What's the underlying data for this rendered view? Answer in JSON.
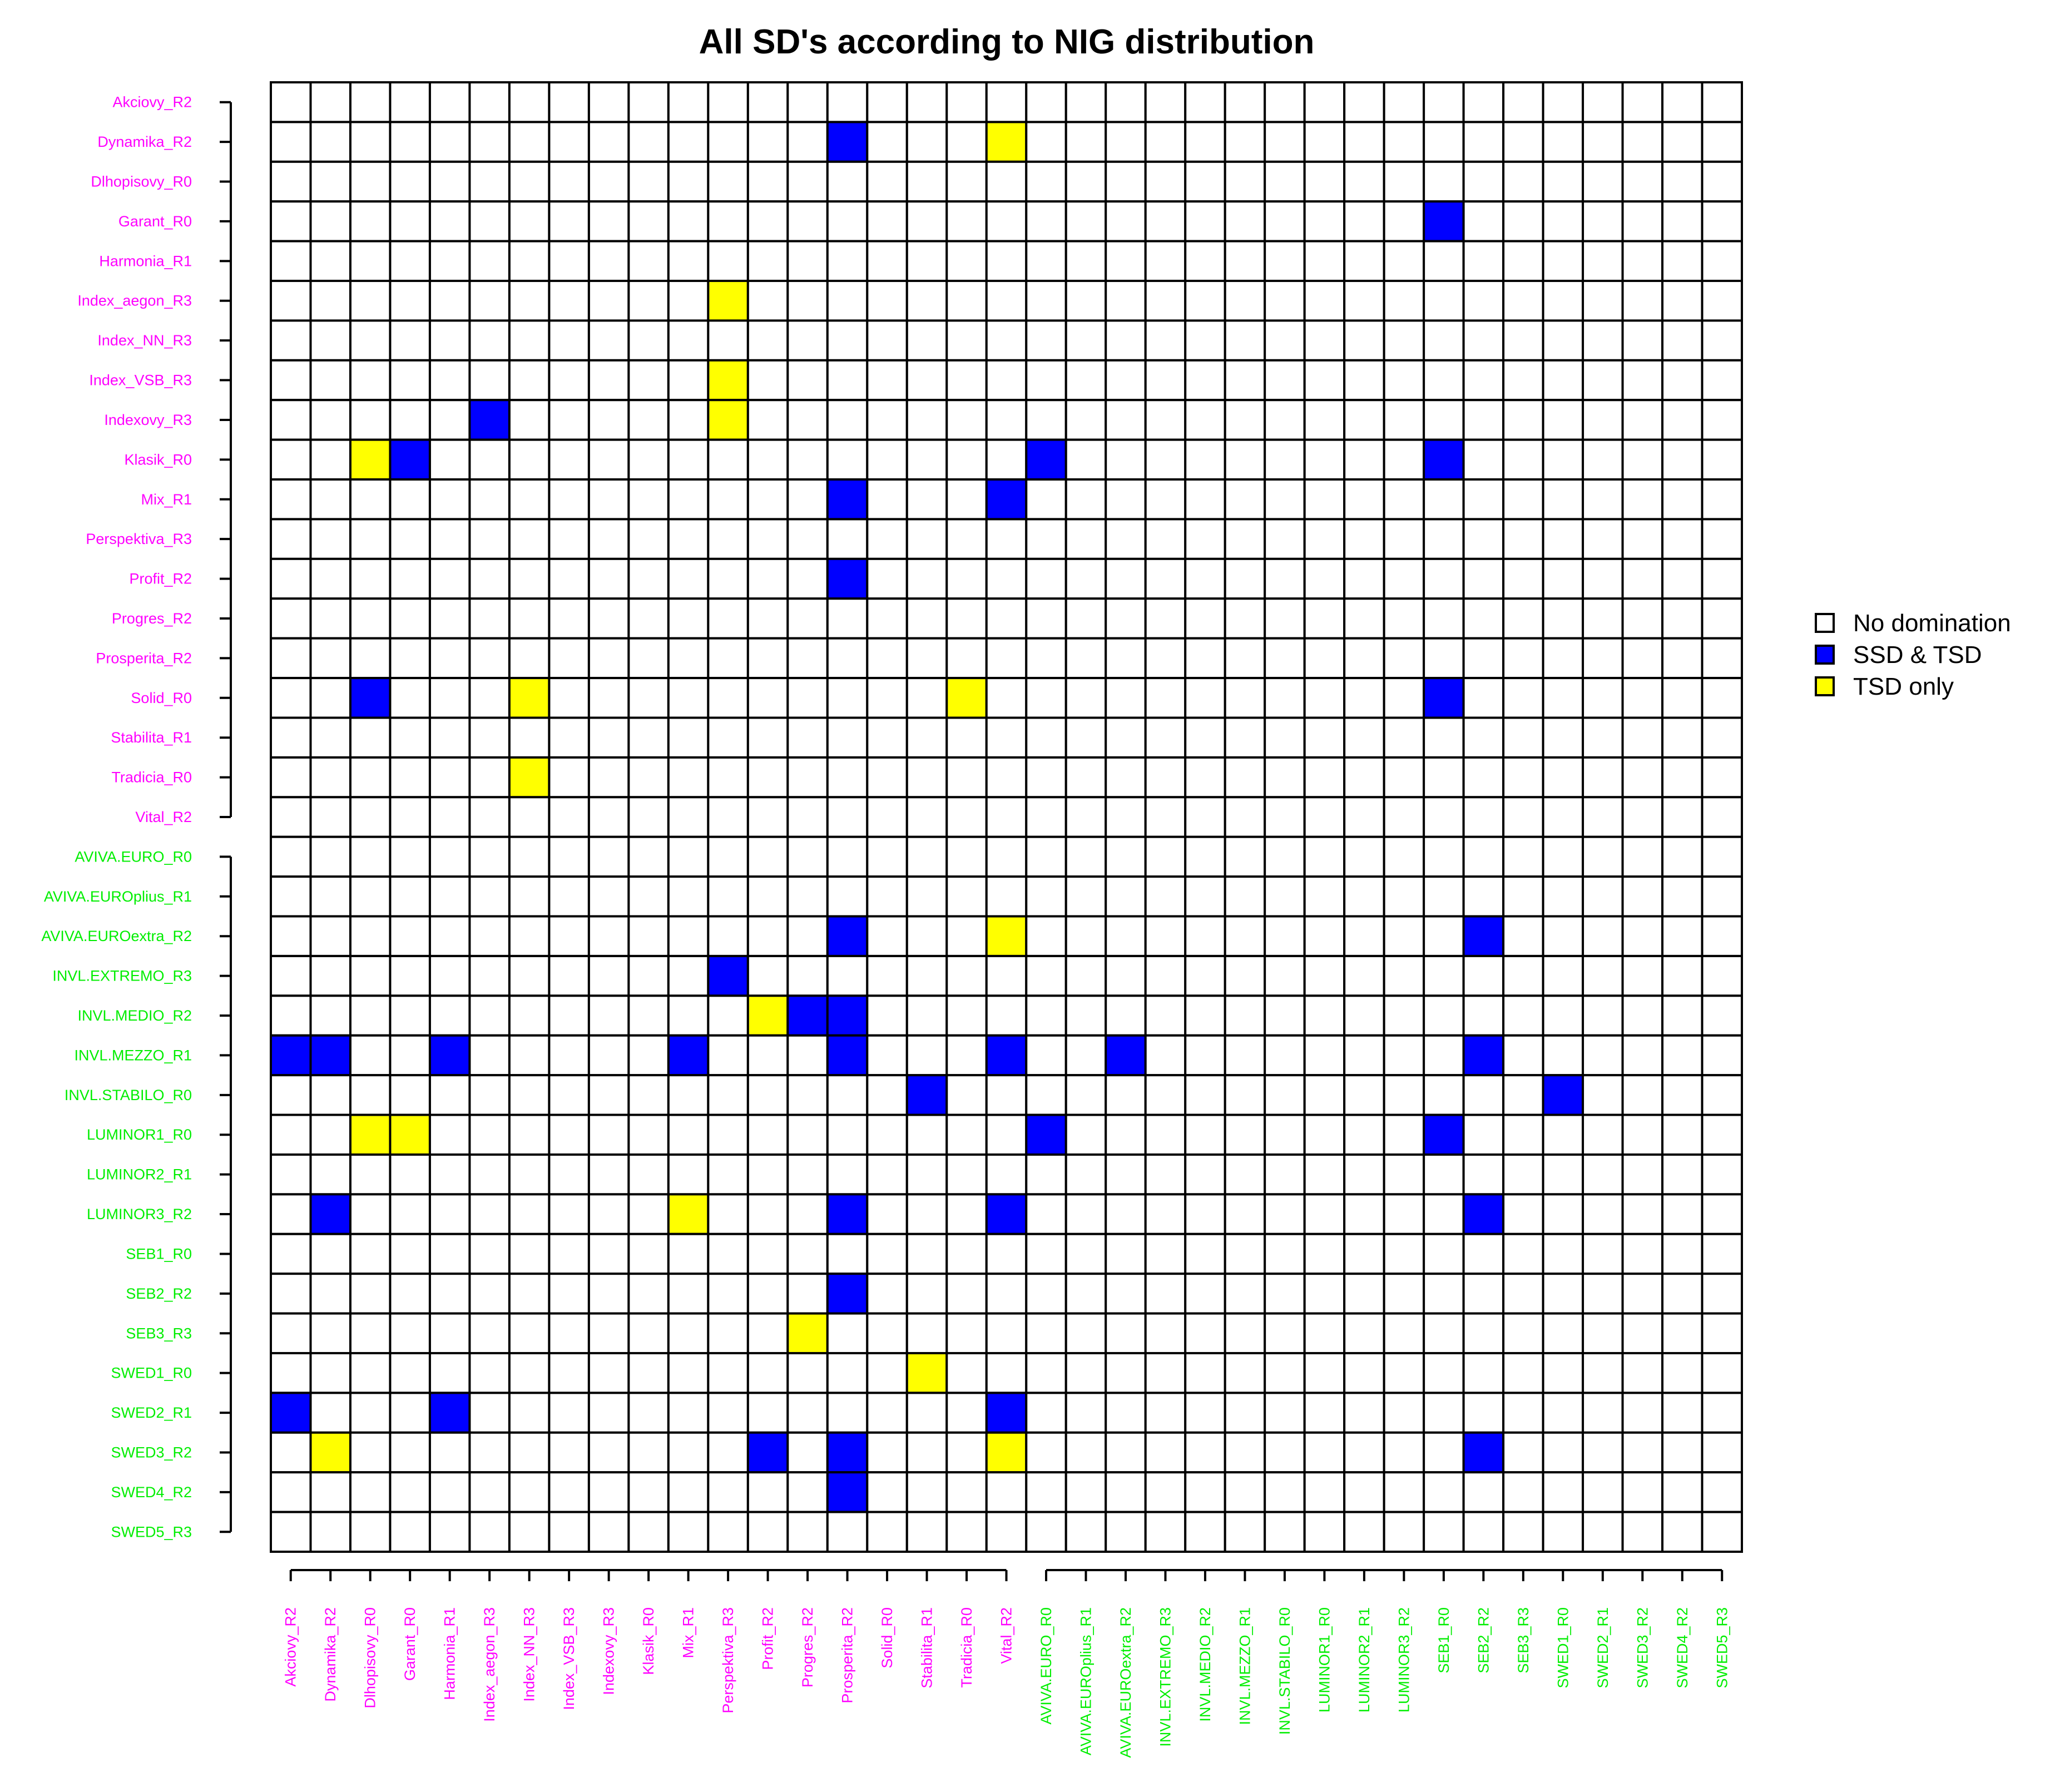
{
  "chart_data": {
    "type": "heatmap",
    "title": "All SD's according to NIG distribution",
    "xlabel": "",
    "ylabel": "",
    "group_colors": {
      "group1": "#ff00ff",
      "group2": "#00ee00"
    },
    "row_labels": [
      "Akciovy_R2",
      "Dynamika_R2",
      "Dlhopisovy_R0",
      "Garant_R0",
      "Harmonia_R1",
      "Index_aegon_R3",
      "Index_NN_R3",
      "Index_VSB_R3",
      "Indexovy_R3",
      "Klasik_R0",
      "Mix_R1",
      "Perspektiva_R3",
      "Profit_R2",
      "Progres_R2",
      "Prosperita_R2",
      "Solid_R0",
      "Stabilita_R1",
      "Tradicia_R0",
      "Vital_R2",
      "AVIVA.EURO_R0",
      "AVIVA.EUROplius_R1",
      "AVIVA.EUROextra_R2",
      "INVL.EXTREMO_R3",
      "INVL.MEDIO_R2",
      "INVL.MEZZO_R1",
      "INVL.STABILO_R0",
      "LUMINOR1_R0",
      "LUMINOR2_R1",
      "LUMINOR3_R2",
      "SEB1_R0",
      "SEB2_R2",
      "SEB3_R3",
      "SWED1_R0",
      "SWED2_R1",
      "SWED3_R2",
      "SWED4_R2",
      "SWED5_R3"
    ],
    "col_labels": [
      "Akciovy_R2",
      "Dynamika_R2",
      "Dlhopisovy_R0",
      "Garant_R0",
      "Harmonia_R1",
      "Index_aegon_R3",
      "Index_NN_R3",
      "Index_VSB_R3",
      "Indexovy_R3",
      "Klasik_R0",
      "Mix_R1",
      "Perspektiva_R3",
      "Profit_R2",
      "Progres_R2",
      "Prosperita_R2",
      "Solid_R0",
      "Stabilita_R1",
      "Tradicia_R0",
      "Vital_R2",
      "AVIVA.EURO_R0",
      "AVIVA.EUROplius_R1",
      "AVIVA.EUROextra_R2",
      "INVL.EXTREMO_R3",
      "INVL.MEDIO_R2",
      "INVL.MEZZO_R1",
      "INVL.STABILO_R0",
      "LUMINOR1_R0",
      "LUMINOR2_R1",
      "LUMINOR3_R2",
      "SEB1_R0",
      "SEB2_R2",
      "SEB3_R3",
      "SWED1_R0",
      "SWED2_R1",
      "SWED3_R2",
      "SWED4_R2",
      "SWED5_R3"
    ],
    "group1_count": 19,
    "categories": [
      {
        "name": "No domination",
        "color": "#ffffff"
      },
      {
        "name": "SSD & TSD",
        "color": "#0000ff"
      },
      {
        "name": "TSD only",
        "color": "#ffff00"
      }
    ],
    "cells": [
      {
        "row": "Dynamika_R2",
        "col": "Prosperita_R2",
        "value": "SSD & TSD"
      },
      {
        "row": "Dynamika_R2",
        "col": "Vital_R2",
        "value": "TSD only"
      },
      {
        "row": "Garant_R0",
        "col": "SEB1_R0",
        "value": "SSD & TSD"
      },
      {
        "row": "Index_aegon_R3",
        "col": "Perspektiva_R3",
        "value": "TSD only"
      },
      {
        "row": "Index_VSB_R3",
        "col": "Perspektiva_R3",
        "value": "TSD only"
      },
      {
        "row": "Indexovy_R3",
        "col": "Index_aegon_R3",
        "value": "SSD & TSD"
      },
      {
        "row": "Indexovy_R3",
        "col": "Perspektiva_R3",
        "value": "TSD only"
      },
      {
        "row": "Klasik_R0",
        "col": "Dlhopisovy_R0",
        "value": "TSD only"
      },
      {
        "row": "Klasik_R0",
        "col": "Garant_R0",
        "value": "SSD & TSD"
      },
      {
        "row": "Klasik_R0",
        "col": "AVIVA.EURO_R0",
        "value": "SSD & TSD"
      },
      {
        "row": "Klasik_R0",
        "col": "SEB1_R0",
        "value": "SSD & TSD"
      },
      {
        "row": "Mix_R1",
        "col": "Prosperita_R2",
        "value": "SSD & TSD"
      },
      {
        "row": "Mix_R1",
        "col": "Vital_R2",
        "value": "SSD & TSD"
      },
      {
        "row": "Profit_R2",
        "col": "Prosperita_R2",
        "value": "SSD & TSD"
      },
      {
        "row": "Solid_R0",
        "col": "Dlhopisovy_R0",
        "value": "SSD & TSD"
      },
      {
        "row": "Solid_R0",
        "col": "Index_NN_R3",
        "value": "TSD only"
      },
      {
        "row": "Solid_R0",
        "col": "Tradicia_R0",
        "value": "TSD only"
      },
      {
        "row": "Solid_R0",
        "col": "SEB1_R0",
        "value": "SSD & TSD"
      },
      {
        "row": "Tradicia_R0",
        "col": "Index_NN_R3",
        "value": "TSD only"
      },
      {
        "row": "AVIVA.EUROextra_R2",
        "col": "Prosperita_R2",
        "value": "SSD & TSD"
      },
      {
        "row": "AVIVA.EUROextra_R2",
        "col": "Vital_R2",
        "value": "TSD only"
      },
      {
        "row": "AVIVA.EUROextra_R2",
        "col": "SEB2_R2",
        "value": "SSD & TSD"
      },
      {
        "row": "INVL.EXTREMO_R3",
        "col": "Perspektiva_R3",
        "value": "SSD & TSD"
      },
      {
        "row": "INVL.MEDIO_R2",
        "col": "Profit_R2",
        "value": "TSD only"
      },
      {
        "row": "INVL.MEDIO_R2",
        "col": "Progres_R2",
        "value": "SSD & TSD"
      },
      {
        "row": "INVL.MEDIO_R2",
        "col": "Prosperita_R2",
        "value": "SSD & TSD"
      },
      {
        "row": "INVL.MEZZO_R1",
        "col": "Akciovy_R2",
        "value": "SSD & TSD"
      },
      {
        "row": "INVL.MEZZO_R1",
        "col": "Dynamika_R2",
        "value": "SSD & TSD"
      },
      {
        "row": "INVL.MEZZO_R1",
        "col": "Harmonia_R1",
        "value": "SSD & TSD"
      },
      {
        "row": "INVL.MEZZO_R1",
        "col": "Mix_R1",
        "value": "SSD & TSD"
      },
      {
        "row": "INVL.MEZZO_R1",
        "col": "Prosperita_R2",
        "value": "SSD & TSD"
      },
      {
        "row": "INVL.MEZZO_R1",
        "col": "Vital_R2",
        "value": "SSD & TSD"
      },
      {
        "row": "INVL.MEZZO_R1",
        "col": "AVIVA.EUROextra_R2",
        "value": "SSD & TSD"
      },
      {
        "row": "INVL.MEZZO_R1",
        "col": "SEB2_R2",
        "value": "SSD & TSD"
      },
      {
        "row": "INVL.STABILO_R0",
        "col": "Stabilita_R1",
        "value": "SSD & TSD"
      },
      {
        "row": "INVL.STABILO_R0",
        "col": "SWED1_R0",
        "value": "SSD & TSD"
      },
      {
        "row": "LUMINOR1_R0",
        "col": "Dlhopisovy_R0",
        "value": "TSD only"
      },
      {
        "row": "LUMINOR1_R0",
        "col": "Garant_R0",
        "value": "TSD only"
      },
      {
        "row": "LUMINOR1_R0",
        "col": "AVIVA.EURO_R0",
        "value": "SSD & TSD"
      },
      {
        "row": "LUMINOR1_R0",
        "col": "SEB1_R0",
        "value": "SSD & TSD"
      },
      {
        "row": "LUMINOR3_R2",
        "col": "Dynamika_R2",
        "value": "SSD & TSD"
      },
      {
        "row": "LUMINOR3_R2",
        "col": "Mix_R1",
        "value": "TSD only"
      },
      {
        "row": "LUMINOR3_R2",
        "col": "Prosperita_R2",
        "value": "SSD & TSD"
      },
      {
        "row": "LUMINOR3_R2",
        "col": "Vital_R2",
        "value": "SSD & TSD"
      },
      {
        "row": "LUMINOR3_R2",
        "col": "SEB2_R2",
        "value": "SSD & TSD"
      },
      {
        "row": "SEB2_R2",
        "col": "Prosperita_R2",
        "value": "SSD & TSD"
      },
      {
        "row": "SEB3_R3",
        "col": "Progres_R2",
        "value": "TSD only"
      },
      {
        "row": "SWED1_R0",
        "col": "Stabilita_R1",
        "value": "TSD only"
      },
      {
        "row": "SWED2_R1",
        "col": "Akciovy_R2",
        "value": "SSD & TSD"
      },
      {
        "row": "SWED2_R1",
        "col": "Harmonia_R1",
        "value": "SSD & TSD"
      },
      {
        "row": "SWED2_R1",
        "col": "Vital_R2",
        "value": "SSD & TSD"
      },
      {
        "row": "SWED3_R2",
        "col": "Dynamika_R2",
        "value": "TSD only"
      },
      {
        "row": "SWED3_R2",
        "col": "Profit_R2",
        "value": "SSD & TSD"
      },
      {
        "row": "SWED3_R2",
        "col": "Prosperita_R2",
        "value": "SSD & TSD"
      },
      {
        "row": "SWED3_R2",
        "col": "Vital_R2",
        "value": "TSD only"
      },
      {
        "row": "SWED3_R2",
        "col": "SEB2_R2",
        "value": "SSD & TSD"
      },
      {
        "row": "SWED4_R2",
        "col": "Prosperita_R2",
        "value": "SSD & TSD"
      }
    ],
    "legend_position": "right",
    "grid": true
  }
}
